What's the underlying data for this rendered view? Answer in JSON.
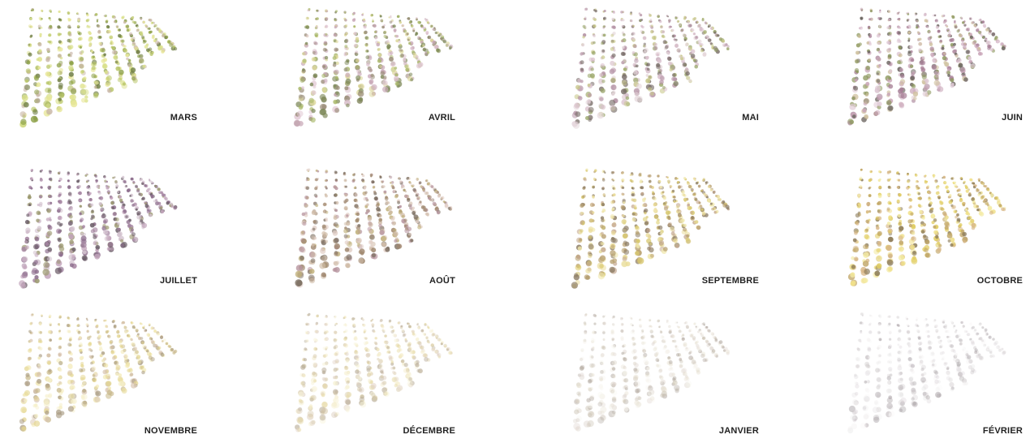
{
  "panels": [
    {
      "label": "MARS"
    },
    {
      "label": "AVRIL"
    },
    {
      "label": "MAI"
    },
    {
      "label": "JUIN"
    },
    {
      "label": "JUILLET"
    },
    {
      "label": "AOÛT"
    },
    {
      "label": "SEPTEMBRE"
    },
    {
      "label": "OCTOBRE"
    },
    {
      "label": "NOVEMBRE"
    },
    {
      "label": "DÉCEMBRE"
    },
    {
      "label": "JANVIER"
    },
    {
      "label": "FÉVRIER"
    }
  ]
}
